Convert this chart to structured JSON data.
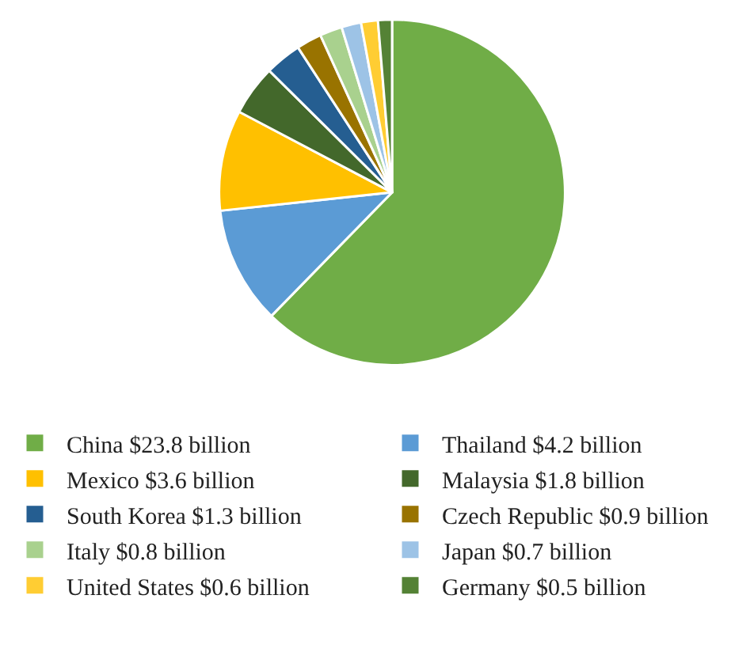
{
  "chart_data": {
    "type": "pie",
    "legend": "bottom",
    "categories": [
      "China",
      "Thailand",
      "Mexico",
      "Malaysia",
      "South Korea",
      "Czech Republic",
      "Italy",
      "Japan",
      "United States",
      "Germany"
    ],
    "values": [
      23.8,
      4.2,
      3.6,
      1.8,
      1.3,
      0.9,
      0.8,
      0.7,
      0.6,
      0.5
    ],
    "value_labels": [
      "$23.8 billion",
      "$4.2 billion",
      "$3.6 billion",
      "$1.8 billion",
      "$1.3 billion",
      "$0.9 billion",
      "$0.8 billion",
      "$0.7 billion",
      "$0.6 billion",
      "$0.5 billion"
    ],
    "colors": [
      "#70ad47",
      "#5b9bd5",
      "#ffc000",
      "#43682b",
      "#255e91",
      "#997300",
      "#a9d18e",
      "#9dc3e6",
      "#ffcd33",
      "#548235"
    ]
  }
}
